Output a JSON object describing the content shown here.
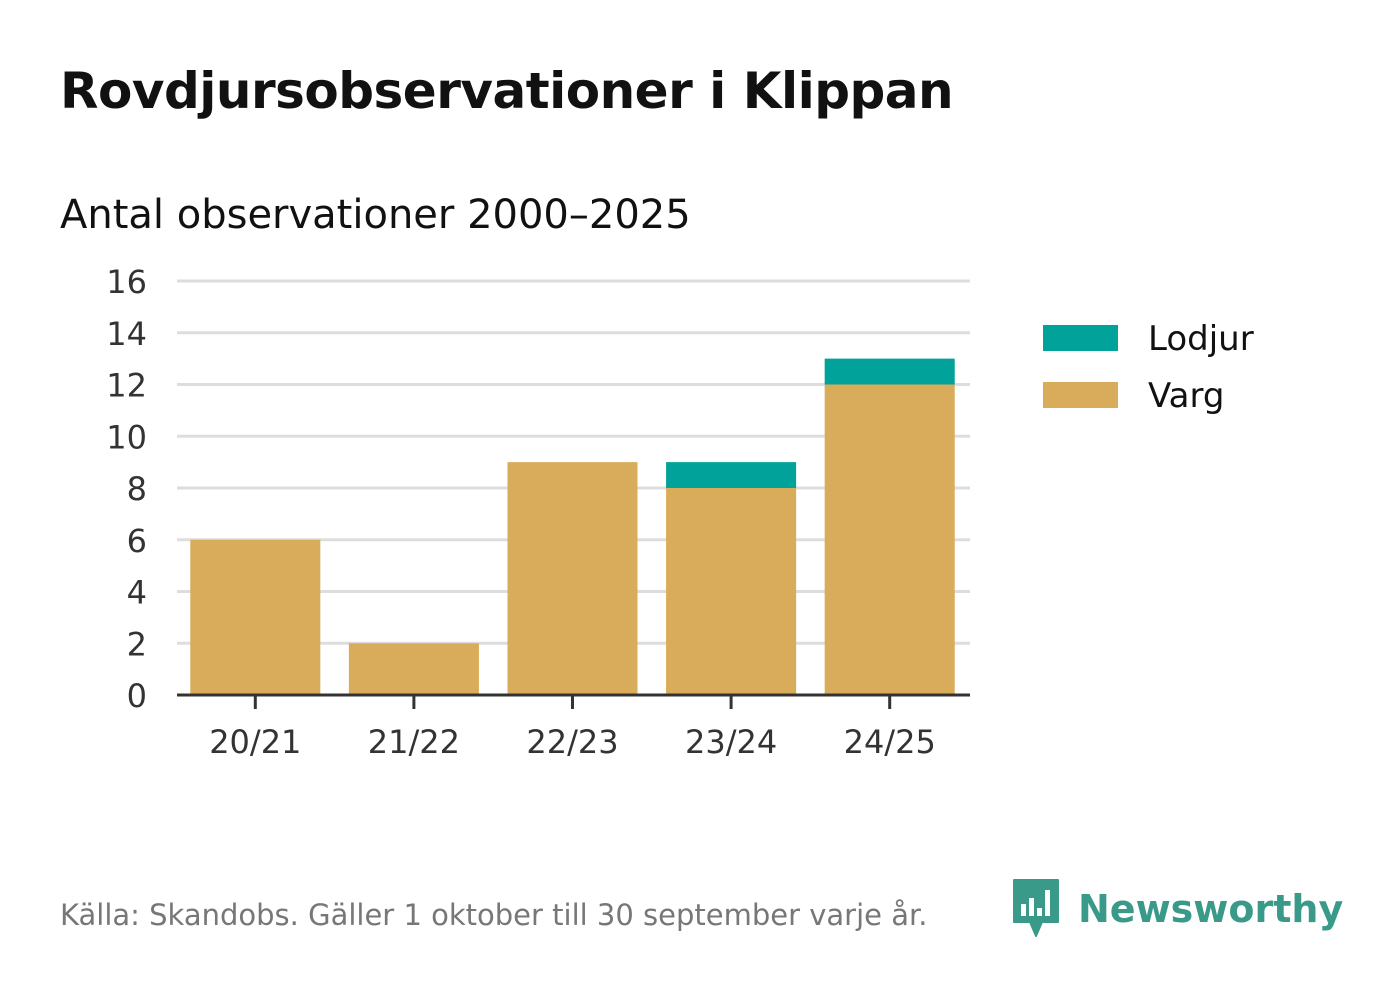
{
  "title": "Rovdjursobservationer i Klippan",
  "subtitle": "Antal observationer 2000–2025",
  "footer": {
    "source": "Källa: Skandobs. Gäller 1 oktober till 30 september varje år.",
    "brand": "Newsworthy"
  },
  "colors": {
    "Varg": "#d9ac5b",
    "Lodjur": "#00a29a",
    "grid": "#dddddd",
    "axis": "#333333",
    "brand": "#3a9a8a"
  },
  "chart_data": {
    "type": "bar",
    "stacked": true,
    "title": "Rovdjursobservationer i Klippan",
    "subtitle": "Antal observationer 2000–2025",
    "xlabel": "",
    "ylabel": "",
    "categories": [
      "20/21",
      "21/22",
      "22/23",
      "23/24",
      "24/25"
    ],
    "series": [
      {
        "name": "Varg",
        "values": [
          6,
          2,
          9,
          8,
          12
        ]
      },
      {
        "name": "Lodjur",
        "values": [
          0,
          0,
          0,
          1,
          1
        ]
      }
    ],
    "ylim": [
      0,
      16
    ],
    "yticks": [
      "0",
      "2",
      "4",
      "6",
      "8",
      "10",
      "12",
      "14",
      "16"
    ],
    "legend": [
      {
        "name": "Lodjur"
      },
      {
        "name": "Varg"
      }
    ],
    "legend_position": "right",
    "grid": true
  }
}
